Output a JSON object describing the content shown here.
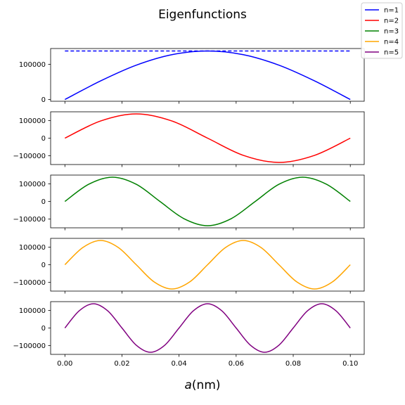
{
  "figure": {
    "title": "Eigenfunctions",
    "xlabel_var": "a",
    "xlabel_unit": "(nm)"
  },
  "chart_data": {
    "type": "line",
    "title": "Eigenfunctions",
    "xlabel": "a (nm)",
    "xlim": [
      0.0,
      0.1
    ],
    "xticks": [
      0.0,
      0.02,
      0.04,
      0.06,
      0.08,
      0.1
    ],
    "xtick_labels": [
      "0.00",
      "0.02",
      "0.04",
      "0.06",
      "0.08",
      "0.10"
    ],
    "legend": {
      "placement": "top-right",
      "entries": [
        {
          "label": "n=1",
          "color": "#0000ff"
        },
        {
          "label": "n=2",
          "color": "#ff0000"
        },
        {
          "label": "n=3",
          "color": "#008000"
        },
        {
          "label": "n=4",
          "color": "#ffa500"
        },
        {
          "label": "n=5",
          "color": "#800080"
        }
      ]
    },
    "panels": [
      {
        "n": 1,
        "color": "#0000ff",
        "ylim": [
          -5000,
          145000
        ],
        "yticks": [
          0,
          100000
        ],
        "ytick_labels": [
          "0",
          "100000"
        ],
        "reference_line": {
          "y": 138000,
          "style": "dashed",
          "x": [
            0.0,
            0.1
          ]
        },
        "x": [
          0.0,
          0.0125,
          0.025,
          0.0375,
          0.05,
          0.0625,
          0.075,
          0.0875,
          0.1
        ],
        "y": [
          0,
          52800,
          97600,
          127500,
          138000,
          127500,
          97600,
          52800,
          0
        ]
      },
      {
        "n": 2,
        "color": "#ff0000",
        "ylim": [
          -150000,
          150000
        ],
        "yticks": [
          -100000,
          0,
          100000
        ],
        "ytick_labels": [
          "−100000",
          "0",
          "100000"
        ],
        "x": [
          0.0,
          0.0125,
          0.025,
          0.0375,
          0.05,
          0.0625,
          0.075,
          0.0875,
          0.1
        ],
        "y": [
          0,
          97600,
          138000,
          97600,
          0,
          -97600,
          -138000,
          -97600,
          0
        ]
      },
      {
        "n": 3,
        "color": "#008000",
        "ylim": [
          -150000,
          150000
        ],
        "yticks": [
          -100000,
          0,
          100000
        ],
        "ytick_labels": [
          "−100000",
          "0",
          "100000"
        ],
        "x": [
          0.0,
          0.00833,
          0.01667,
          0.025,
          0.0333,
          0.04167,
          0.05,
          0.0583,
          0.0667,
          0.075,
          0.0833,
          0.09167,
          0.1
        ],
        "y": [
          0,
          97600,
          138000,
          97600,
          0,
          -97600,
          -138000,
          -97600,
          0,
          97600,
          138000,
          97600,
          0
        ]
      },
      {
        "n": 4,
        "color": "#ffa500",
        "ylim": [
          -150000,
          150000
        ],
        "yticks": [
          -100000,
          0,
          100000
        ],
        "ytick_labels": [
          "−100000",
          "0",
          "100000"
        ],
        "x": [
          0.0,
          0.00625,
          0.0125,
          0.01875,
          0.025,
          0.03125,
          0.0375,
          0.04375,
          0.05,
          0.05625,
          0.0625,
          0.06875,
          0.075,
          0.08125,
          0.0875,
          0.09375,
          0.1
        ],
        "y": [
          0,
          97600,
          138000,
          97600,
          0,
          -97600,
          -138000,
          -97600,
          0,
          97600,
          138000,
          97600,
          0,
          -97600,
          -138000,
          -97600,
          0
        ]
      },
      {
        "n": 5,
        "color": "#800080",
        "ylim": [
          -150000,
          150000
        ],
        "yticks": [
          -100000,
          0,
          100000
        ],
        "ytick_labels": [
          "−100000",
          "0",
          "100000"
        ],
        "x": [
          0.0,
          0.005,
          0.01,
          0.015,
          0.02,
          0.025,
          0.03,
          0.035,
          0.04,
          0.045,
          0.05,
          0.055,
          0.06,
          0.065,
          0.07,
          0.075,
          0.08,
          0.085,
          0.09,
          0.095,
          0.1
        ],
        "y": [
          0,
          97600,
          138000,
          97600,
          0,
          -97600,
          -138000,
          -97600,
          0,
          97600,
          138000,
          97600,
          0,
          -97600,
          -138000,
          -97600,
          0,
          97600,
          138000,
          97600,
          0
        ]
      }
    ]
  }
}
